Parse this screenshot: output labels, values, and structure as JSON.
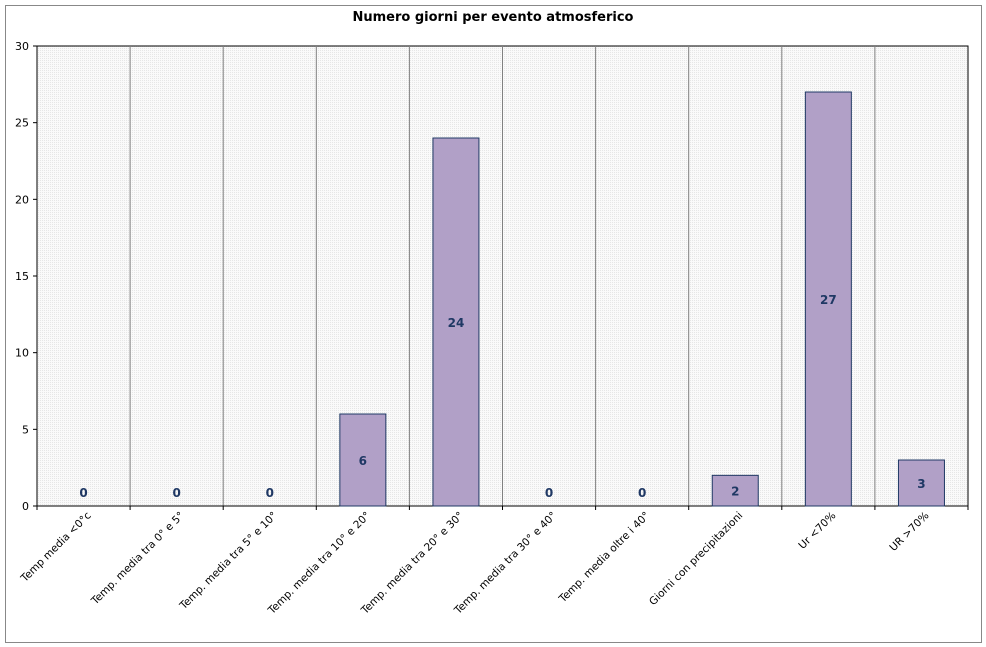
{
  "chart_data": {
    "type": "bar",
    "title": "Numero giorni per evento atmosferico",
    "xlabel": "",
    "ylabel": "",
    "ylim": [
      0,
      30
    ],
    "yticks": [
      0,
      5,
      10,
      15,
      20,
      25,
      30
    ],
    "grid": "vertical category separators",
    "legend": "none",
    "categories": [
      "Temp media <0°c",
      "Temp. media tra 0° e 5°",
      "Temp. media tra 5° e 10°",
      "Temp. media tra 10° e 20°",
      "Temp. media tra 20° e 30°",
      "Temp. media tra 30° e 40°",
      "Temp. media oltre i 40°",
      "Giorni con precipitazioni",
      "Ur  <70%",
      "UR >70%"
    ],
    "values": [
      0,
      0,
      0,
      6,
      24,
      0,
      0,
      2,
      27,
      3
    ],
    "colors": {
      "bar": "#b1a0c7",
      "bar_border": "#1f3864",
      "label": "#1f3864",
      "plot_bg": "#f4f4f4"
    }
  }
}
